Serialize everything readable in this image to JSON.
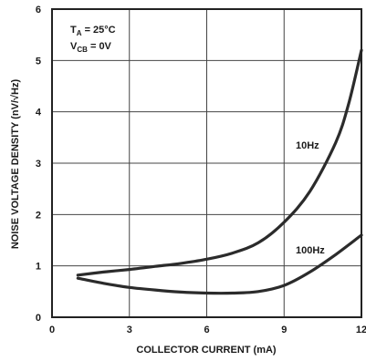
{
  "chart_data": {
    "type": "line",
    "xlabel": "COLLECTOR CURRENT (mA)",
    "ylabel": "NOISE VOLTAGE DENSITY (nV/√Hz)",
    "xlim": [
      0,
      12
    ],
    "ylim": [
      0,
      6
    ],
    "x_ticks": [
      "0",
      "3",
      "6",
      "9",
      "12"
    ],
    "y_ticks": [
      "0",
      "1",
      "2",
      "3",
      "4",
      "5",
      "6"
    ],
    "grid": true,
    "annotations": {
      "condition_1": "T",
      "condition_1_sub": "A",
      "condition_1_rest": " = 25°C",
      "condition_2": "V",
      "condition_2_sub": "CB",
      "condition_2_rest": " = 0V"
    },
    "series": [
      {
        "name": "10Hz",
        "color": "#2b2b2b",
        "x": [
          1,
          2,
          3,
          4,
          5,
          6,
          7,
          8,
          9,
          10,
          11,
          11.5,
          12
        ],
        "y": [
          0.82,
          0.88,
          0.93,
          0.99,
          1.05,
          1.13,
          1.25,
          1.45,
          1.85,
          2.45,
          3.4,
          4.15,
          5.2
        ]
      },
      {
        "name": "100Hz",
        "color": "#2b2b2b",
        "x": [
          1,
          2,
          3,
          4,
          5,
          6,
          7,
          8,
          9,
          10,
          11,
          12
        ],
        "y": [
          0.76,
          0.66,
          0.58,
          0.53,
          0.49,
          0.47,
          0.47,
          0.5,
          0.62,
          0.88,
          1.22,
          1.6
        ]
      }
    ]
  }
}
